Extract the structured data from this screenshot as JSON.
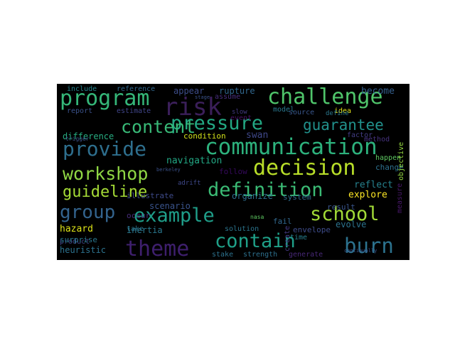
{
  "wordcloud": {
    "background": "#000000",
    "words": [
      {
        "text": "challenge",
        "color": "#4fc46a"
      },
      {
        "text": "program",
        "color": "#35b779"
      },
      {
        "text": "risk",
        "color": "#3b1f5a"
      },
      {
        "text": "pressure",
        "color": "#23a883"
      },
      {
        "text": "content",
        "color": "#38b977"
      },
      {
        "text": "guarantee",
        "color": "#21918c"
      },
      {
        "text": "provide",
        "color": "#2e6f8e"
      },
      {
        "text": "communication",
        "color": "#2db27d"
      },
      {
        "text": "decision",
        "color": "#b8de29"
      },
      {
        "text": "workshop",
        "color": "#8fd744"
      },
      {
        "text": "definition",
        "color": "#3bbb75"
      },
      {
        "text": "guideline",
        "color": "#a5db36"
      },
      {
        "text": "group",
        "color": "#33638d"
      },
      {
        "text": "example",
        "color": "#1f9e89"
      },
      {
        "text": "school",
        "color": "#a2da37"
      },
      {
        "text": "theme",
        "color": "#3e1f6d"
      },
      {
        "text": "contain",
        "color": "#1fa088"
      },
      {
        "text": "burn",
        "color": "#2c728e"
      },
      {
        "text": "include",
        "color": "#25858e"
      },
      {
        "text": "reference",
        "color": "#31688e"
      },
      {
        "text": "appear",
        "color": "#3d4d8a"
      },
      {
        "text": "rupture",
        "color": "#31678e"
      },
      {
        "text": "assume",
        "color": "#472d7b"
      },
      {
        "text": "model",
        "color": "#2a788e"
      },
      {
        "text": "idea",
        "color": "#e5e419"
      },
      {
        "text": "become",
        "color": "#355f8d"
      },
      {
        "text": "report",
        "color": "#3b528b"
      },
      {
        "text": "estimate",
        "color": "#404588"
      },
      {
        "text": "slow",
        "color": "#443a83"
      },
      {
        "text": "event",
        "color": "#471164"
      },
      {
        "text": "source",
        "color": "#39568c"
      },
      {
        "text": "define",
        "color": "#2a778e"
      },
      {
        "text": "factor",
        "color": "#433e85"
      },
      {
        "text": "difference",
        "color": "#27ad81"
      },
      {
        "text": "condition",
        "color": "#d2e21b"
      },
      {
        "text": "swan",
        "color": "#3f4889"
      },
      {
        "text": "method",
        "color": "#46337f"
      },
      {
        "text": "navigation",
        "color": "#22a884"
      },
      {
        "text": "happen",
        "color": "#5ec962"
      },
      {
        "text": "change",
        "color": "#2d718e"
      },
      {
        "text": "follow",
        "color": "#35095c"
      },
      {
        "text": "reflect",
        "color": "#26828e"
      },
      {
        "text": "explore",
        "color": "#fde725"
      },
      {
        "text": "illustrate",
        "color": "#3e4a89"
      },
      {
        "text": "organize",
        "color": "#2e6e8e"
      },
      {
        "text": "scenario",
        "color": "#3a548c"
      },
      {
        "text": "system",
        "color": "#2f6c8e"
      },
      {
        "text": "result",
        "color": "#39558c"
      },
      {
        "text": "hazard",
        "color": "#dde318"
      },
      {
        "text": "product",
        "color": "#414487"
      },
      {
        "text": "occur",
        "color": "#472c7a"
      },
      {
        "text": "inertia",
        "color": "#2a788e"
      },
      {
        "text": "fail",
        "color": "#31688e"
      },
      {
        "text": "envelope",
        "color": "#3e4c8a"
      },
      {
        "text": "evolve",
        "color": "#2c738e"
      },
      {
        "text": "objective",
        "color": "#95d840"
      },
      {
        "text": "take",
        "color": "#2b748e"
      },
      {
        "text": "time",
        "color": "#277f8e"
      },
      {
        "text": "solution",
        "color": "#2b758e"
      },
      {
        "text": "create",
        "color": "#443983"
      },
      {
        "text": "surprise",
        "color": "#2a788e"
      },
      {
        "text": "heuristic",
        "color": "#2c728e"
      },
      {
        "text": "stake",
        "color": "#2c728e"
      },
      {
        "text": "strength",
        "color": "#2d708e"
      },
      {
        "text": "generate",
        "color": "#482878"
      },
      {
        "text": "measure",
        "color": "#48186a"
      },
      {
        "text": "trigger",
        "color": "#3b528b"
      },
      {
        "text": "nasa",
        "color": "#5ec962"
      },
      {
        "text": "adrift",
        "color": "#3f4889"
      },
      {
        "text": "berkeley",
        "color": "#3b528b"
      },
      {
        "text": "stage",
        "color": "#3b528b"
      },
      {
        "text": "continually",
        "color": "#3b528b"
      }
    ]
  }
}
